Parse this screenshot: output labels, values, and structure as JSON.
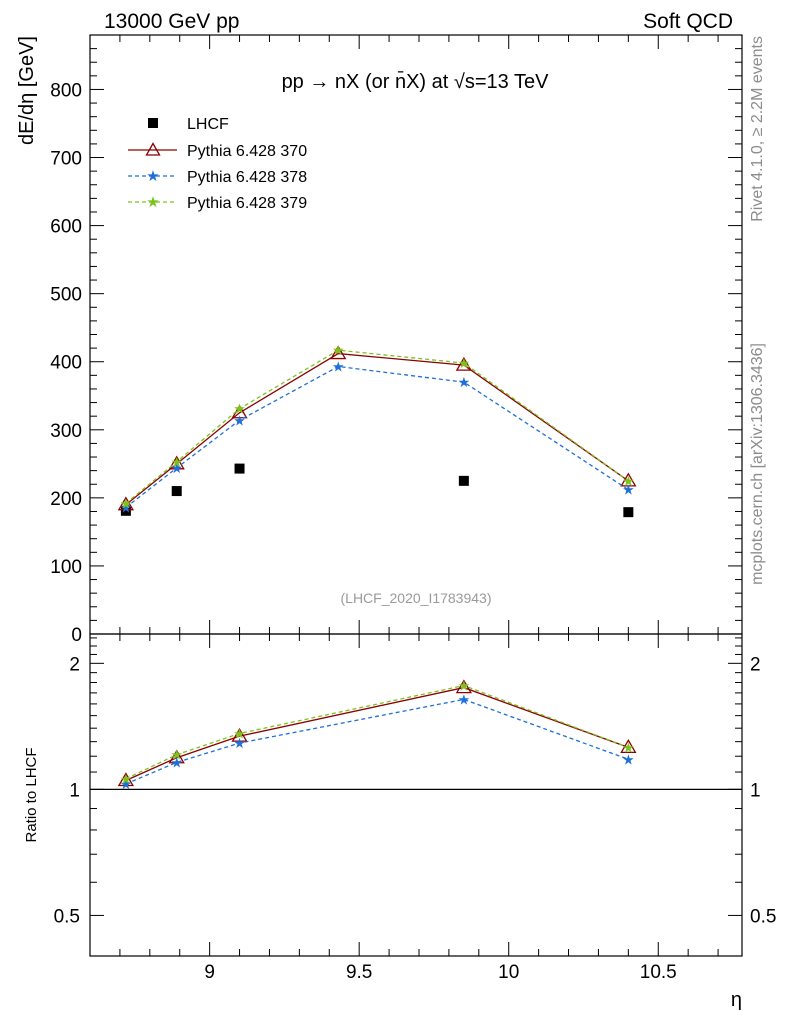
{
  "header": {
    "left": "13000 GeV pp",
    "right": "Soft QCD"
  },
  "side_text": {
    "rivet": "Rivet 4.1.0, ≥ 2.2M events",
    "arxiv": "mcplots.cern.ch [arXiv:1306.3436]"
  },
  "chart_data": [
    {
      "type": "scatter",
      "title": "pp → nX (or n̄X) at √s=13 TeV",
      "annotation": "(LHCF_2020_I1783943)",
      "xlabel": "η",
      "ylabel": "dE/dη [GeV]",
      "xlim": [
        8.6,
        10.78
      ],
      "ylim": [
        0,
        880
      ],
      "yticks": [
        0,
        100,
        200,
        300,
        400,
        500,
        600,
        700,
        800
      ],
      "x": [
        8.72,
        8.89,
        9.1,
        9.43,
        9.85,
        10.4
      ],
      "legend_position": "top-left",
      "series": [
        {
          "name": "LHCF",
          "values": [
            181,
            210,
            243,
            null,
            225,
            179
          ],
          "color": "#000000",
          "style": "square-marker"
        },
        {
          "name": "Pythia 6.428 370",
          "values": [
            190,
            250,
            325,
            412,
            395,
            225
          ],
          "color": "#8b0000",
          "style": "solid-triangle"
        },
        {
          "name": "Pythia 6.428 378",
          "values": [
            186,
            244,
            314,
            393,
            370,
            212
          ],
          "color": "#1e6fd9",
          "style": "dashed-star"
        },
        {
          "name": "Pythia 6.428 379",
          "values": [
            192,
            253,
            331,
            417,
            398,
            225
          ],
          "color": "#7cc21c",
          "style": "dashed-star"
        }
      ]
    },
    {
      "type": "line",
      "ylabel": "Ratio to LHCF",
      "xlabel": "η",
      "yscale": "log",
      "ylim": [
        0.4,
        2.35
      ],
      "yticks": [
        0.5,
        1,
        2
      ],
      "xticks": [
        9,
        9.5,
        10,
        10.5
      ],
      "x": [
        8.72,
        8.89,
        9.1,
        9.85,
        10.4
      ],
      "series": [
        {
          "name": "Pythia 6.428 370",
          "values": [
            1.05,
            1.19,
            1.34,
            1.75,
            1.26
          ],
          "color": "#8b0000"
        },
        {
          "name": "Pythia 6.428 378",
          "values": [
            1.03,
            1.16,
            1.29,
            1.64,
            1.18
          ],
          "color": "#1e6fd9"
        },
        {
          "name": "Pythia 6.428 379",
          "values": [
            1.06,
            1.21,
            1.36,
            1.77,
            1.26
          ],
          "color": "#7cc21c"
        }
      ]
    }
  ]
}
